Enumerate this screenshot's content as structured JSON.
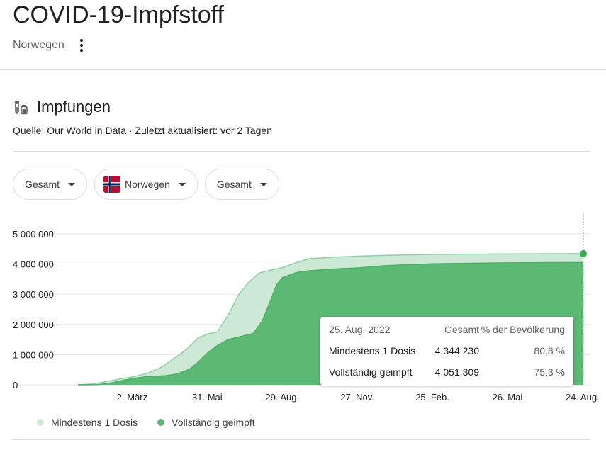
{
  "header": {
    "title": "COVID-19-Impfstoff",
    "subtitle": "Norwegen"
  },
  "section": {
    "title": "Impfungen",
    "source_prefix": "Quelle: ",
    "source_link": "Our World in Data",
    "updated": " · Zuletzt aktualisiert: vor 2 Tagen",
    "icon": "syringe-vial-icon"
  },
  "filters": {
    "metric": "Gesamt",
    "country": "Norwegen",
    "country_icon": "norway-flag-icon",
    "measure": "Gesamt"
  },
  "tooltip": {
    "date": "25. Aug. 2022",
    "col_total": "Gesamt",
    "col_pct": "% der Bevölkerung",
    "rows": [
      {
        "label": "Mindestens 1 Dosis",
        "total": "4.344.230",
        "pct": "80,8 %"
      },
      {
        "label": "Vollständig geimpft",
        "total": "4.051.309",
        "pct": "75,3 %"
      }
    ]
  },
  "colors": {
    "one_dose": "#cde9d6",
    "fully": "#5bb974",
    "marker": "#34a853"
  },
  "chart_data": {
    "type": "area",
    "title": "",
    "xlabel": "",
    "ylabel": "",
    "ylim": [
      0,
      5000000
    ],
    "grid": true,
    "legend_placement": "bottom-left",
    "y_ticks": [
      0,
      1000000,
      2000000,
      3000000,
      4000000,
      5000000
    ],
    "y_tick_labels": [
      "0",
      "1 000 000",
      "2 000 000",
      "3 000 000",
      "4 000 000",
      "5 000 000"
    ],
    "x_range": [
      "2020-12-27",
      "2022-08-25"
    ],
    "x_ticks": [
      "2021-03-02",
      "2021-05-31",
      "2021-08-29",
      "2021-11-27",
      "2022-02-25",
      "2022-05-26",
      "2022-08-24"
    ],
    "x_tick_labels": [
      "2. März",
      "31. Mai",
      "29. Aug.",
      "27. Nov.",
      "25. Feb.",
      "26. Mai",
      "24. Aug."
    ],
    "series": [
      {
        "name": "Mindestens 1 Dosis",
        "points": [
          [
            "2020-12-27",
            0
          ],
          [
            "2021-01-15",
            30000
          ],
          [
            "2021-02-01",
            120000
          ],
          [
            "2021-02-15",
            190000
          ],
          [
            "2021-03-02",
            260000
          ],
          [
            "2021-03-20",
            380000
          ],
          [
            "2021-04-05",
            560000
          ],
          [
            "2021-04-20",
            850000
          ],
          [
            "2021-05-05",
            1150000
          ],
          [
            "2021-05-20",
            1550000
          ],
          [
            "2021-05-31",
            1680000
          ],
          [
            "2021-06-12",
            1750000
          ],
          [
            "2021-06-25",
            2300000
          ],
          [
            "2021-07-08",
            3000000
          ],
          [
            "2021-07-20",
            3400000
          ],
          [
            "2021-08-01",
            3700000
          ],
          [
            "2021-08-15",
            3800000
          ],
          [
            "2021-08-29",
            3880000
          ],
          [
            "2021-09-15",
            4050000
          ],
          [
            "2021-10-01",
            4180000
          ],
          [
            "2021-11-01",
            4230000
          ],
          [
            "2021-11-27",
            4260000
          ],
          [
            "2022-01-01",
            4290000
          ],
          [
            "2022-02-25",
            4320000
          ],
          [
            "2022-05-26",
            4338000
          ],
          [
            "2022-08-25",
            4344230
          ]
        ]
      },
      {
        "name": "Vollständig geimpft",
        "points": [
          [
            "2020-12-27",
            0
          ],
          [
            "2021-01-20",
            5000
          ],
          [
            "2021-02-05",
            60000
          ],
          [
            "2021-02-20",
            150000
          ],
          [
            "2021-03-02",
            210000
          ],
          [
            "2021-03-20",
            270000
          ],
          [
            "2021-04-10",
            300000
          ],
          [
            "2021-04-25",
            360000
          ],
          [
            "2021-05-10",
            520000
          ],
          [
            "2021-05-20",
            750000
          ],
          [
            "2021-05-31",
            1050000
          ],
          [
            "2021-06-12",
            1300000
          ],
          [
            "2021-06-25",
            1500000
          ],
          [
            "2021-07-10",
            1600000
          ],
          [
            "2021-07-25",
            1700000
          ],
          [
            "2021-08-05",
            2100000
          ],
          [
            "2021-08-15",
            2800000
          ],
          [
            "2021-08-22",
            3300000
          ],
          [
            "2021-08-29",
            3550000
          ],
          [
            "2021-09-15",
            3720000
          ],
          [
            "2021-10-01",
            3780000
          ],
          [
            "2021-11-01",
            3840000
          ],
          [
            "2021-11-27",
            3870000
          ],
          [
            "2022-01-01",
            3950000
          ],
          [
            "2022-02-25",
            4010000
          ],
          [
            "2022-05-26",
            4040000
          ],
          [
            "2022-08-25",
            4051309
          ]
        ]
      }
    ]
  },
  "legend": [
    {
      "label": "Mindestens 1 Dosis"
    },
    {
      "label": "Vollständig geimpft"
    }
  ]
}
